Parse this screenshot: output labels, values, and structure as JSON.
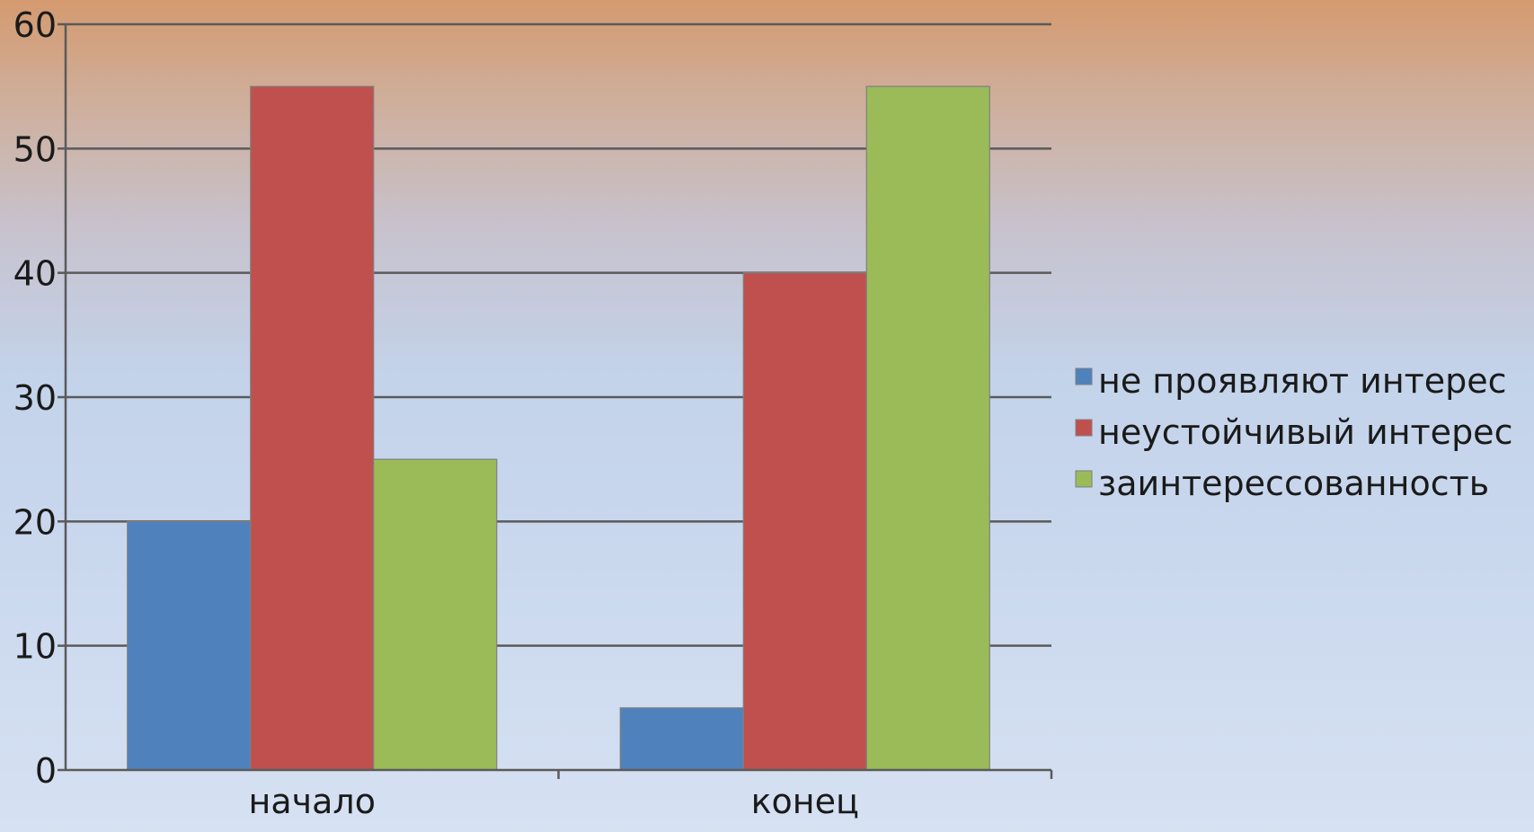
{
  "chart_data": {
    "type": "bar",
    "categories": [
      "начало",
      "конец"
    ],
    "series": [
      {
        "name": "не проявляют интерес",
        "values": [
          20,
          5
        ],
        "color": "#4f81bd"
      },
      {
        "name": "неустойчивый интерес",
        "values": [
          55,
          40
        ],
        "color": "#c0504d"
      },
      {
        "name": "заинтерессованность",
        "values": [
          25,
          55
        ],
        "color": "#9bbb59"
      }
    ],
    "y_ticks": [
      "0",
      "10",
      "20",
      "30",
      "40",
      "50",
      "60"
    ],
    "ylim": [
      0,
      60
    ],
    "grid": true,
    "legend_position": "right"
  }
}
